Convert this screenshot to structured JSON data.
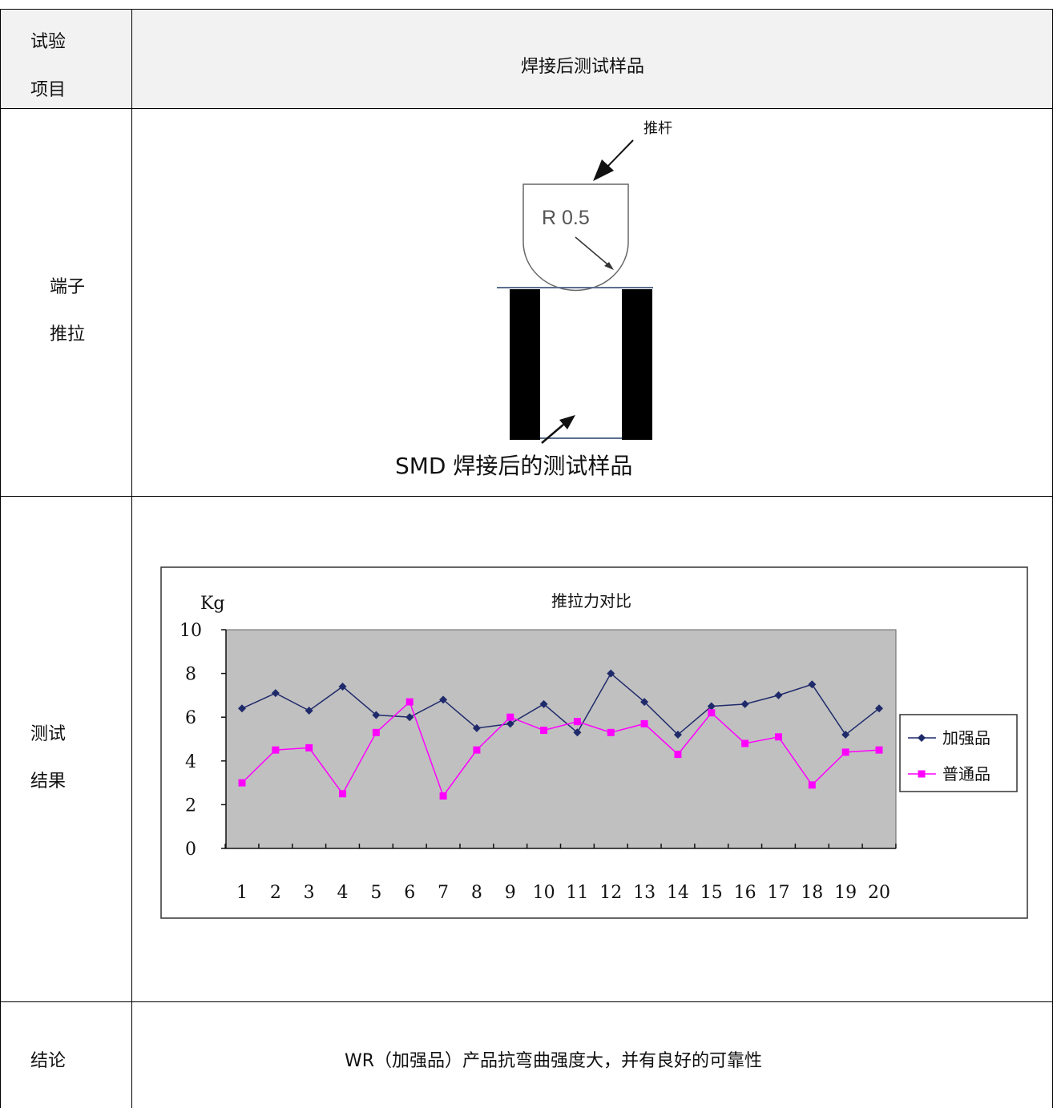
{
  "table": {
    "header": {
      "col1_line1": "试验",
      "col1_line2": "项目",
      "col2": "焊接后测试样品"
    },
    "rows": [
      {
        "label_line1": "端子",
        "label_line2": "推拉"
      },
      {
        "label_line1": "测试",
        "label_line2": "结果"
      },
      {
        "label_line1": "结论",
        "content": "WR（加强品）产品抗弯曲强度大，并有良好的可靠性"
      }
    ]
  },
  "diagram": {
    "push_rod_label": "推杆",
    "radius_label": "R 0.5",
    "sample_caption": "SMD 焊接后的测试样品"
  },
  "colors": {
    "series_reinforced": "#1f2a6b",
    "series_normal": "#ff00ff",
    "plot_bg": "#c0c0c0"
  },
  "chart_data": {
    "type": "line",
    "title": "推拉力对比",
    "ylabel": "Kg",
    "ylim": [
      0,
      10
    ],
    "yticks": [
      0,
      2,
      4,
      6,
      8,
      10
    ],
    "grid": false,
    "legend_position": "right",
    "categories": [
      "1",
      "2",
      "3",
      "4",
      "5",
      "6",
      "7",
      "8",
      "9",
      "10",
      "11",
      "12",
      "13",
      "14",
      "15",
      "16",
      "17",
      "18",
      "19",
      "20"
    ],
    "series": [
      {
        "name": "加强品",
        "marker": "diamond",
        "values": [
          6.4,
          7.1,
          6.3,
          7.4,
          6.1,
          6.0,
          6.8,
          5.5,
          5.7,
          6.6,
          5.3,
          8.0,
          6.7,
          5.2,
          6.5,
          6.6,
          7.0,
          7.5,
          5.2,
          6.4
        ]
      },
      {
        "name": "普通品",
        "marker": "square",
        "values": [
          3.0,
          4.5,
          4.6,
          2.5,
          5.3,
          6.7,
          2.4,
          4.5,
          6.0,
          5.4,
          5.8,
          5.3,
          5.7,
          4.3,
          6.2,
          4.8,
          5.1,
          2.9,
          4.4,
          4.5
        ]
      }
    ]
  }
}
